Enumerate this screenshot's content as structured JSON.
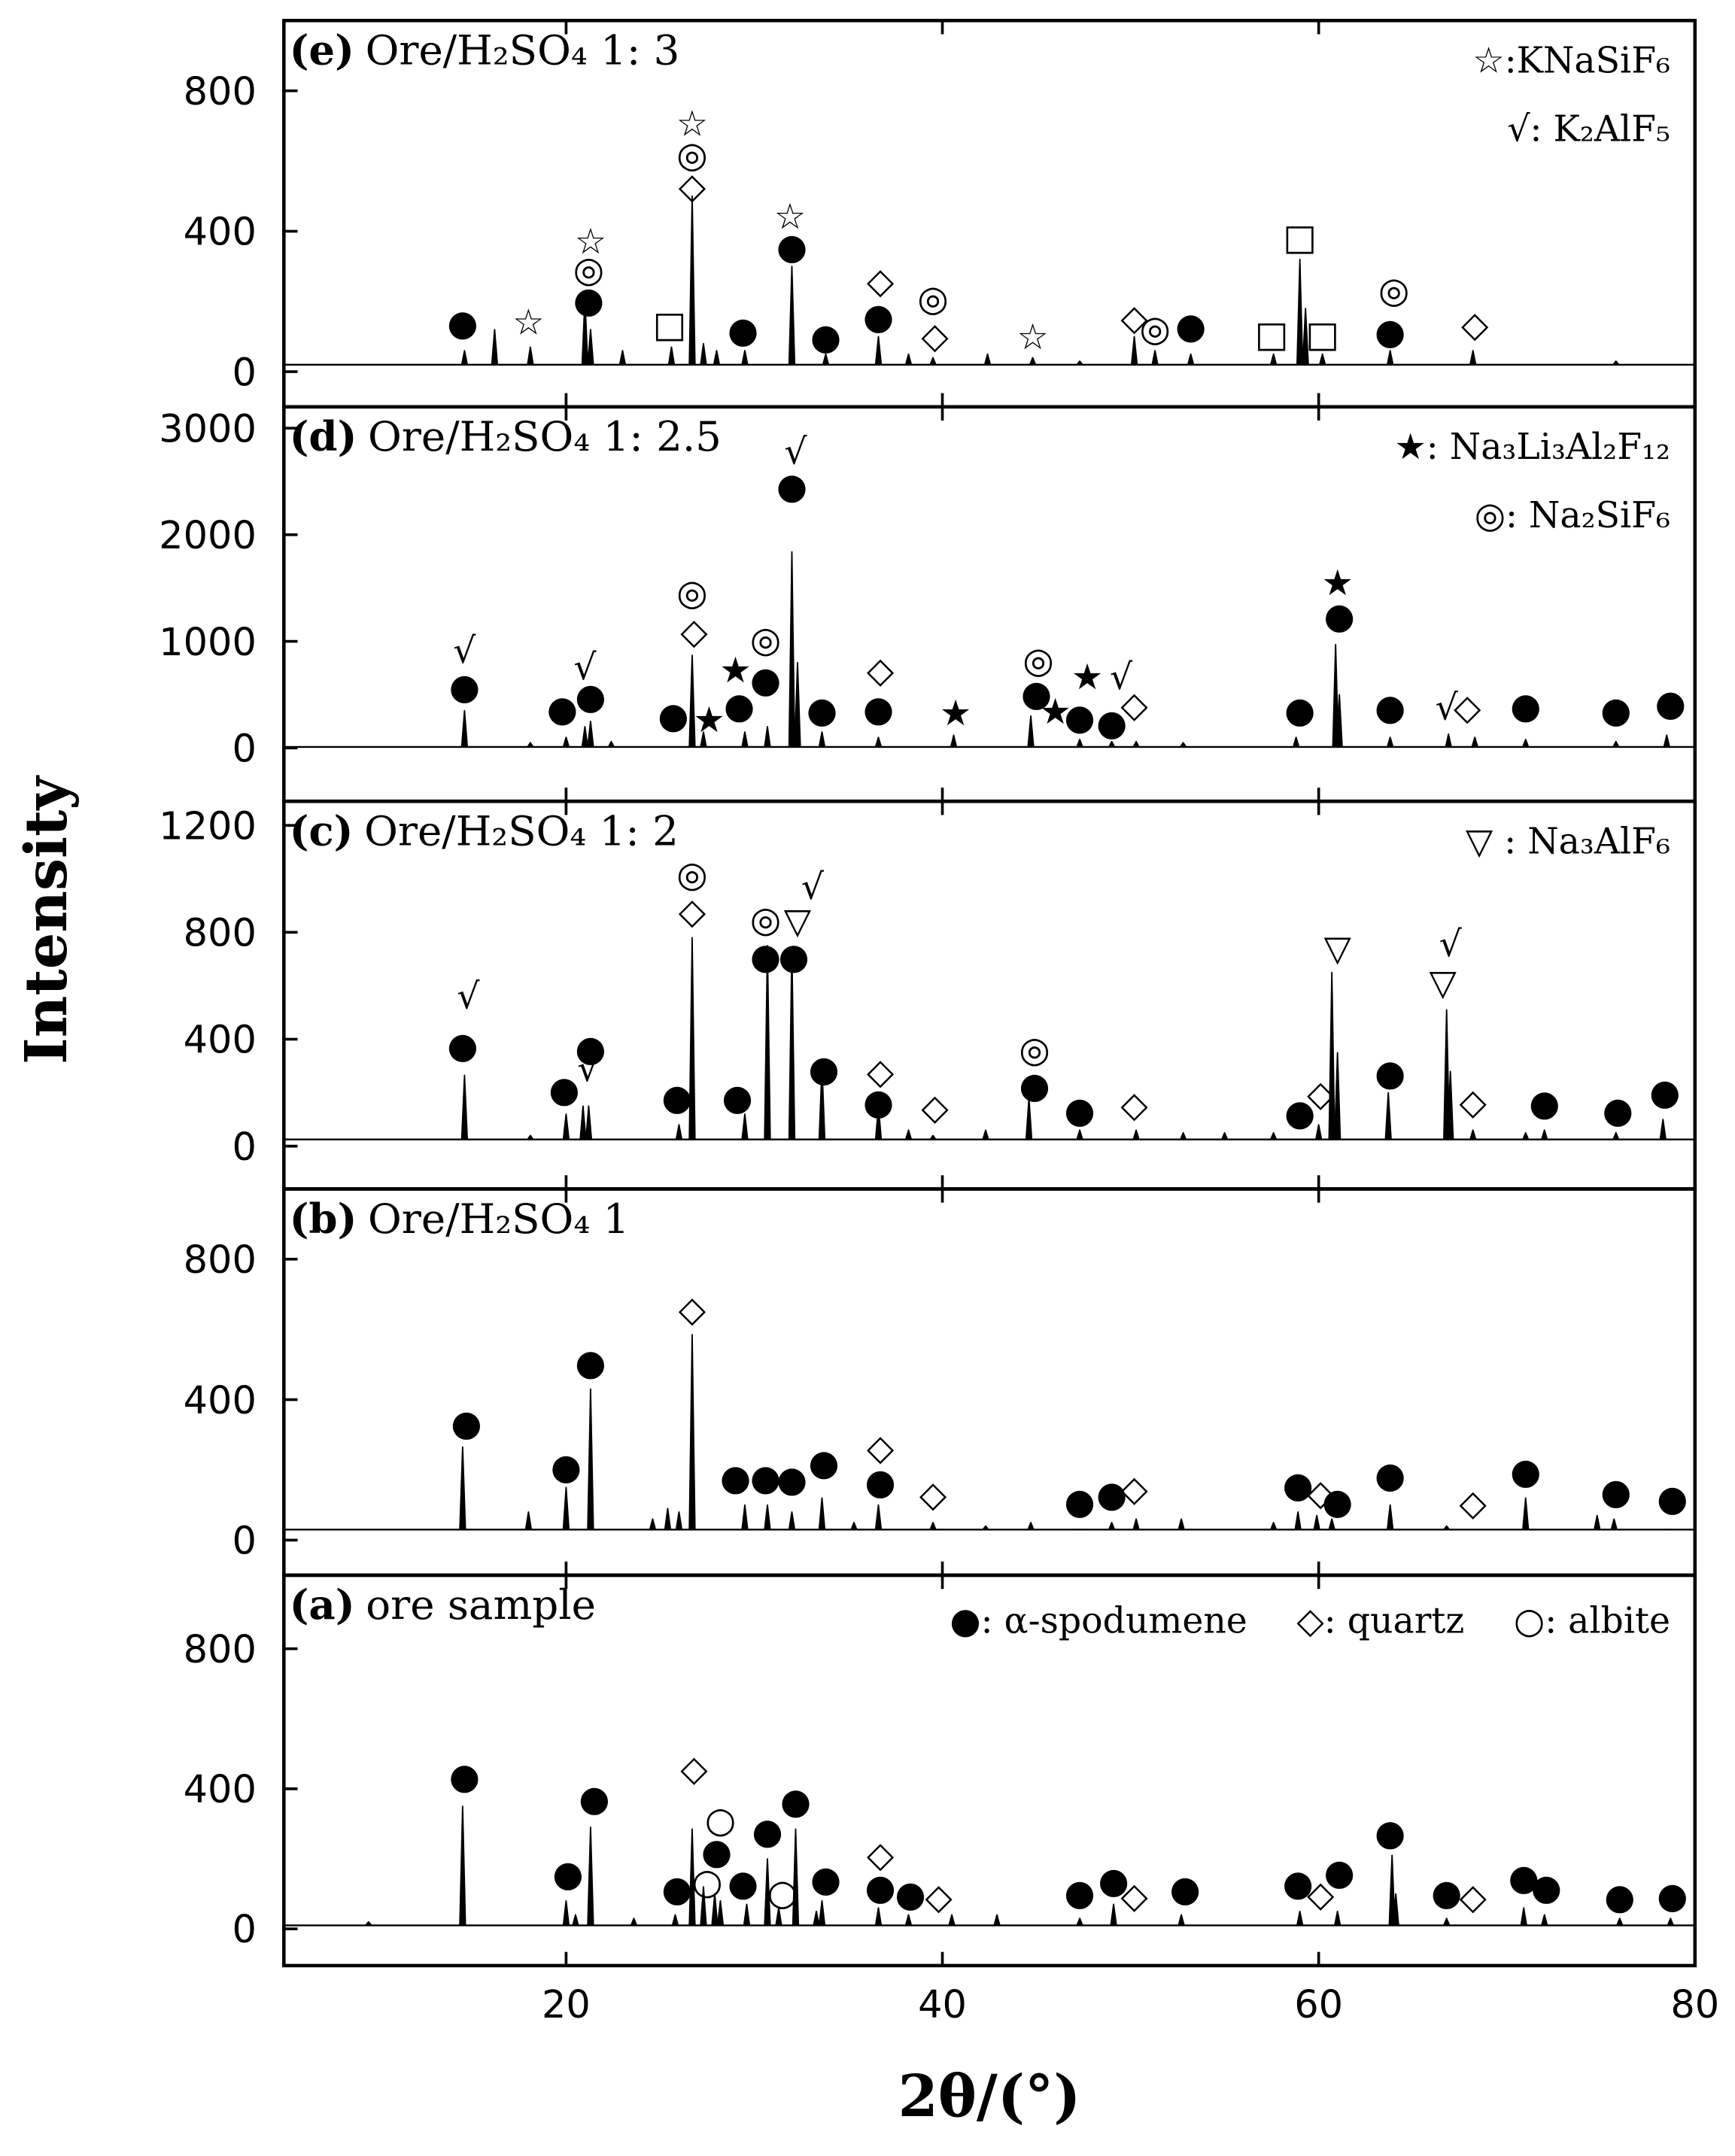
{
  "shared": {
    "ylabel": "Intensity",
    "xlabel": "2θ/(°)"
  },
  "chart_data": [
    {
      "type": "spectrum",
      "label": "(e)",
      "title": "Ore/H₂SO₄ 1: 3",
      "legend": [
        "☆:KNaSiF₆",
        "√: K₂AlF₅"
      ],
      "xlim": [
        5,
        80
      ],
      "xticks": [
        20,
        40,
        60,
        80
      ],
      "ylim": [
        -100,
        1000
      ],
      "yticks": [
        0,
        400,
        800
      ],
      "baseline": 20,
      "peaks": {
        "x": [
          14.6,
          16.2,
          18.1,
          21.0,
          21.3,
          23.0,
          25.6,
          26.7,
          27.3,
          28.0,
          29.5,
          32.0,
          33.8,
          36.6,
          38.2,
          39.5,
          42.4,
          44.8,
          47.3,
          50.2,
          51.3,
          53.2,
          57.6,
          59.0,
          59.3,
          60.2,
          63.8,
          68.2,
          75.8
        ],
        "values": [
          60,
          120,
          70,
          210,
          120,
          60,
          70,
          500,
          80,
          60,
          60,
          300,
          50,
          100,
          50,
          40,
          50,
          40,
          30,
          100,
          60,
          50,
          50,
          320,
          180,
          50,
          60,
          60,
          30
        ]
      },
      "markers": [
        {
          "symbol": "●",
          "points": [
            [
              14.5,
              137
            ],
            [
              21.2,
              203
            ],
            [
              29.4,
              117
            ],
            [
              32.0,
              355
            ],
            [
              33.8,
              98
            ],
            [
              36.6,
              156
            ],
            [
              53.2,
              129
            ],
            [
              63.8,
              113
            ]
          ]
        },
        {
          "symbol": "☆",
          "points": [
            [
              18.0,
              140
            ],
            [
              21.3,
              370
            ],
            [
              26.7,
              705
            ],
            [
              31.9,
              440
            ],
            [
              44.8,
              98
            ]
          ]
        },
        {
          "symbol": "◎",
          "points": [
            [
              21.2,
              289
            ],
            [
              26.7,
              616
            ],
            [
              39.5,
              207
            ],
            [
              51.3,
              121
            ],
            [
              64.0,
              230
            ]
          ]
        },
        {
          "symbol": "◇",
          "points": [
            [
              26.7,
              527
            ],
            [
              36.7,
              257
            ],
            [
              39.6,
              101
            ],
            [
              50.2,
              152
            ],
            [
              68.3,
              133
            ]
          ]
        },
        {
          "symbol": "□",
          "points": [
            [
              25.5,
              133
            ],
            [
              57.5,
              105
            ],
            [
              59.0,
              382
            ],
            [
              60.2,
              105
            ]
          ]
        }
      ]
    },
    {
      "type": "spectrum",
      "label": "(d)",
      "title": "Ore/H₂SO₄ 1: 2.5",
      "legend": [
        "★: Na₃Li₃Al₂F₁₂",
        "◎: Na₂SiF₆"
      ],
      "xlim": [
        5,
        80
      ],
      "xticks": [
        20,
        40,
        60,
        80
      ],
      "ylim": [
        -500,
        3200
      ],
      "yticks": [
        0,
        1000,
        2000,
        3000
      ],
      "baseline": 10,
      "peaks": {
        "x": [
          14.6,
          18.1,
          20.0,
          21.0,
          21.3,
          22.4,
          26.7,
          27.3,
          29.5,
          30.7,
          32.0,
          32.3,
          33.6,
          36.6,
          40.6,
          44.7,
          47.3,
          49.0,
          50.3,
          52.8,
          58.8,
          60.9,
          61.1,
          63.8,
          66.9,
          68.3,
          71.0,
          75.8,
          78.5
        ],
        "values": [
          350,
          50,
          100,
          200,
          250,
          60,
          870,
          150,
          150,
          200,
          1840,
          800,
          150,
          100,
          120,
          300,
          80,
          60,
          60,
          50,
          100,
          970,
          500,
          100,
          130,
          100,
          80,
          60,
          120
        ]
      },
      "markers": [
        {
          "symbol": "●",
          "points": [
            [
              14.6,
              570
            ],
            [
              19.8,
              363
            ],
            [
              21.3,
              480
            ],
            [
              25.7,
              298
            ],
            [
              29.2,
              390
            ],
            [
              30.6,
              635
            ],
            [
              32.0,
              2450
            ],
            [
              33.6,
              350
            ],
            [
              36.6,
              363
            ],
            [
              45.0,
              506
            ],
            [
              47.3,
              285
            ],
            [
              49.0,
              233
            ],
            [
              59.0,
              350
            ],
            [
              61.1,
              1232
            ],
            [
              63.8,
              376
            ],
            [
              71.0,
              389
            ],
            [
              75.8,
              350
            ],
            [
              78.7,
              415
            ]
          ]
        },
        {
          "symbol": "√",
          "points": [
            [
              14.6,
              908
            ],
            [
              21.0,
              752
            ],
            [
              32.2,
              2775
            ],
            [
              49.5,
              661
            ],
            [
              66.8,
              376
            ]
          ]
        },
        {
          "symbol": "◎",
          "points": [
            [
              26.7,
              1453
            ],
            [
              30.6,
              1012
            ],
            [
              45.1,
              817
            ]
          ]
        },
        {
          "symbol": "◇",
          "points": [
            [
              26.8,
              1090
            ],
            [
              36.7,
              726
            ],
            [
              50.2,
              402
            ],
            [
              67.9,
              376
            ]
          ]
        },
        {
          "symbol": "★",
          "points": [
            [
              27.6,
              259
            ],
            [
              29.0,
              726
            ],
            [
              40.7,
              324
            ],
            [
              46.0,
              337
            ],
            [
              47.7,
              661
            ],
            [
              61.0,
              1543
            ]
          ]
        }
      ]
    },
    {
      "type": "spectrum",
      "label": "(c)",
      "title": "Ore/H₂SO₄ 1: 2",
      "legend": [
        "▽ : Na₃AlF₆"
      ],
      "xlim": [
        5,
        80
      ],
      "xticks": [
        20,
        40,
        60,
        80
      ],
      "ylim": [
        -160,
        1290
      ],
      "yticks": [
        0,
        400,
        800,
        1200
      ],
      "baseline": 25,
      "peaks": {
        "x": [
          14.6,
          18.1,
          20.0,
          20.9,
          21.2,
          26.0,
          26.7,
          29.5,
          30.7,
          32.0,
          33.6,
          36.6,
          38.2,
          39.5,
          42.3,
          44.6,
          47.3,
          50.3,
          52.8,
          55.0,
          57.6,
          60.0,
          60.7,
          61.0,
          63.7,
          66.8,
          67.0,
          68.2,
          71.0,
          72.0,
          75.8,
          78.3
        ],
        "values": [
          265,
          40,
          120,
          150,
          150,
          80,
          780,
          120,
          750,
          740,
          300,
          150,
          60,
          40,
          60,
          180,
          60,
          60,
          50,
          50,
          50,
          80,
          650,
          350,
          200,
          510,
          280,
          60,
          50,
          60,
          50,
          100
        ]
      },
      "markers": [
        {
          "symbol": "●",
          "points": [
            [
              14.5,
              374
            ],
            [
              19.9,
              210
            ],
            [
              21.3,
              364
            ],
            [
              25.9,
              180
            ],
            [
              29.1,
              180
            ],
            [
              30.6,
              708
            ],
            [
              32.1,
              708
            ],
            [
              33.7,
              287
            ],
            [
              36.6,
              164
            ],
            [
              44.9,
              226
            ],
            [
              47.3,
              133
            ],
            [
              59.0,
              123
            ],
            [
              63.8,
              272
            ],
            [
              72.0,
              159
            ],
            [
              75.9,
              133
            ],
            [
              78.4,
              200
            ]
          ]
        },
        {
          "symbol": "√",
          "points": [
            [
              14.8,
              559
            ],
            [
              21.2,
              287
            ],
            [
              33.1,
              969
            ],
            [
              67.0,
              754
            ]
          ]
        },
        {
          "symbol": "◎",
          "points": [
            [
              26.7,
              1015
            ],
            [
              30.6,
              846
            ],
            [
              44.9,
              359
            ]
          ]
        },
        {
          "symbol": "◇",
          "points": [
            [
              26.7,
              877
            ],
            [
              36.7,
              277
            ],
            [
              39.6,
              144
            ],
            [
              50.2,
              154
            ],
            [
              60.1,
              195
            ],
            [
              68.2,
              164
            ]
          ]
        },
        {
          "symbol": "▽",
          "points": [
            [
              32.3,
              841
            ],
            [
              61.0,
              738
            ],
            [
              66.6,
              610
            ]
          ]
        }
      ]
    },
    {
      "type": "spectrum",
      "label": "(b)",
      "title": "Ore/H₂SO₄ 1",
      "xlim": [
        5,
        80
      ],
      "xticks": [
        20,
        40,
        60,
        80
      ],
      "ylim": [
        -100,
        1000
      ],
      "yticks": [
        0,
        400,
        800
      ],
      "baseline": 30,
      "peaks": {
        "x": [
          14.5,
          18.0,
          20.0,
          21.3,
          24.6,
          25.4,
          26.0,
          26.7,
          29.5,
          30.7,
          32.0,
          33.6,
          35.3,
          36.6,
          39.5,
          42.3,
          44.7,
          47.3,
          49.0,
          50.3,
          52.7,
          57.6,
          58.9,
          59.9,
          60.7,
          63.8,
          66.8,
          71.0,
          74.8,
          75.7,
          78.5
        ],
        "values": [
          265,
          80,
          150,
          430,
          60,
          90,
          80,
          585,
          100,
          100,
          80,
          120,
          50,
          100,
          50,
          40,
          50,
          30,
          50,
          60,
          60,
          50,
          80,
          70,
          60,
          100,
          40,
          120,
          70,
          60,
          30
        ]
      },
      "markers": [
        {
          "symbol": "●",
          "points": [
            [
              14.7,
              332
            ],
            [
              20.0,
              207
            ],
            [
              21.3,
              504
            ],
            [
              29.0,
              176
            ],
            [
              30.6,
              176
            ],
            [
              32.0,
              172
            ],
            [
              33.7,
              219
            ],
            [
              36.7,
              164
            ],
            [
              47.3,
              109
            ],
            [
              49.0,
              129
            ],
            [
              58.9,
              156
            ],
            [
              61.0,
              109
            ],
            [
              63.8,
              184
            ],
            [
              71.0,
              195
            ],
            [
              75.8,
              137
            ],
            [
              78.8,
              117
            ]
          ]
        },
        {
          "symbol": "◇",
          "points": [
            [
              26.7,
              656
            ],
            [
              36.7,
              262
            ],
            [
              39.5,
              129
            ],
            [
              50.2,
              145
            ],
            [
              60.1,
              133
            ],
            [
              68.2,
              105
            ]
          ]
        }
      ]
    },
    {
      "type": "spectrum",
      "label": "(a)",
      "title": "ore sample",
      "legend": [
        "●: α-spodumene",
        "◇: quartz",
        "○: albite"
      ],
      "xlim": [
        5,
        80
      ],
      "xticks": [
        20,
        40,
        60,
        80
      ],
      "ylim": [
        -105,
        1010
      ],
      "yticks": [
        0,
        400,
        800
      ],
      "baseline": 10,
      "peaks": {
        "x": [
          9.5,
          14.5,
          20.0,
          20.5,
          21.3,
          23.6,
          25.8,
          26.7,
          27.3,
          27.9,
          28.2,
          29.6,
          30.7,
          31.3,
          32.2,
          33.3,
          33.6,
          36.6,
          38.2,
          40.5,
          42.9,
          47.3,
          49.1,
          52.7,
          59.0,
          61.0,
          63.9,
          64.1,
          66.8,
          70.9,
          72.0,
          76.0,
          78.7
        ],
        "values": [
          20,
          350,
          80,
          40,
          290,
          30,
          40,
          285,
          120,
          100,
          80,
          70,
          200,
          60,
          285,
          50,
          80,
          60,
          40,
          40,
          40,
          30,
          70,
          40,
          50,
          50,
          210,
          100,
          30,
          60,
          40,
          30,
          30
        ]
      },
      "markers": [
        {
          "symbol": "●",
          "points": [
            [
              14.6,
              434
            ],
            [
              20.1,
              156
            ],
            [
              21.5,
              371
            ],
            [
              25.9,
              113
            ],
            [
              28.0,
              219
            ],
            [
              29.4,
              129
            ],
            [
              30.7,
              277
            ],
            [
              32.2,
              363
            ],
            [
              33.8,
              141
            ],
            [
              36.7,
              117
            ],
            [
              38.3,
              98
            ],
            [
              47.3,
              102
            ],
            [
              49.1,
              137
            ],
            [
              52.9,
              113
            ],
            [
              58.9,
              129
            ],
            [
              61.1,
              160
            ],
            [
              63.8,
              273
            ],
            [
              66.8,
              102
            ],
            [
              70.9,
              145
            ],
            [
              72.1,
              117
            ],
            [
              76.0,
              90
            ],
            [
              78.8,
              94
            ]
          ]
        },
        {
          "symbol": "◇",
          "points": [
            [
              26.8,
              457
            ],
            [
              36.7,
              211
            ],
            [
              39.8,
              90
            ],
            [
              50.2,
              94
            ],
            [
              60.1,
              98
            ],
            [
              68.2,
              90
            ]
          ]
        },
        {
          "symbol": "○",
          "points": [
            [
              28.2,
              309
            ],
            [
              27.5,
              133
            ],
            [
              31.5,
              102
            ]
          ]
        }
      ]
    }
  ]
}
